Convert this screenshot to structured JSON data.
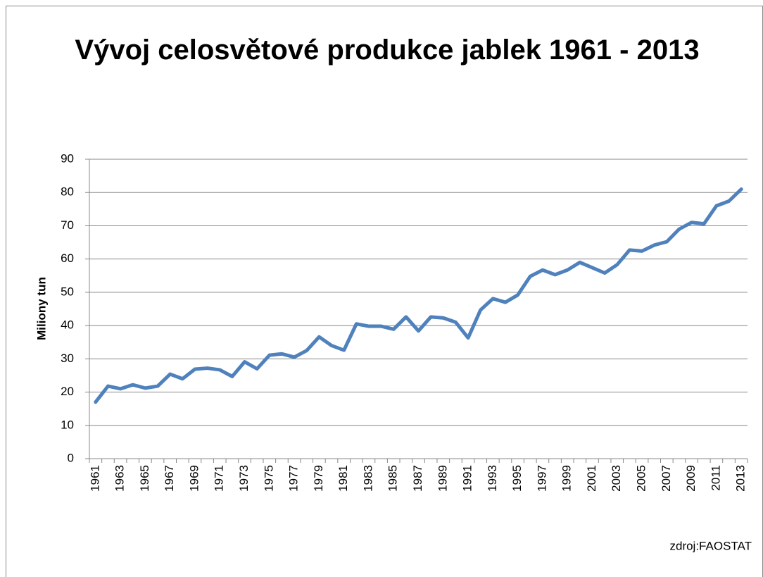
{
  "chart_data": {
    "type": "line",
    "title": "Vývoj celosvětové produkce jablek 1961 - 2013",
    "y_label": "Miliony tun",
    "source": "zdroj:FAOSTAT",
    "categories": [
      "1961",
      null,
      "1963",
      null,
      "1965",
      null,
      "1967",
      null,
      "1969",
      null,
      "1971",
      null,
      "1973",
      null,
      "1975",
      null,
      "1977",
      null,
      "1979",
      null,
      "1981",
      null,
      "1983",
      null,
      "1985",
      null,
      "1987",
      null,
      "1989",
      null,
      "1991",
      null,
      "1993",
      null,
      "1995",
      null,
      "1997",
      null,
      "1999",
      null,
      "2001",
      null,
      "2003",
      null,
      "2005",
      null,
      "2007",
      null,
      "2009",
      null,
      "2011",
      null,
      "2013"
    ],
    "values": [
      17,
      21.8,
      21,
      22.2,
      21.2,
      21.8,
      25.4,
      24,
      26.9,
      27.2,
      26.7,
      24.7,
      29.1,
      27,
      31.1,
      31.5,
      30.5,
      32.5,
      36.6,
      34,
      32.6,
      40.5,
      39.8,
      39.8,
      38.9,
      42.6,
      38.4,
      42.6,
      42.3,
      41,
      36.3,
      44.7,
      48.1,
      47,
      49.2,
      54.8,
      56.7,
      55.3,
      56.7,
      59,
      57.4,
      55.8,
      58.3,
      62.7,
      62.4,
      64.2,
      65.2,
      69,
      71,
      70.6,
      76,
      77.4,
      81
    ],
    "color": "#4f81bd",
    "ylim": [
      0,
      90
    ],
    "yticks": [
      0,
      10,
      20,
      30,
      40,
      50,
      60,
      70,
      80,
      90
    ],
    "grid": true
  }
}
